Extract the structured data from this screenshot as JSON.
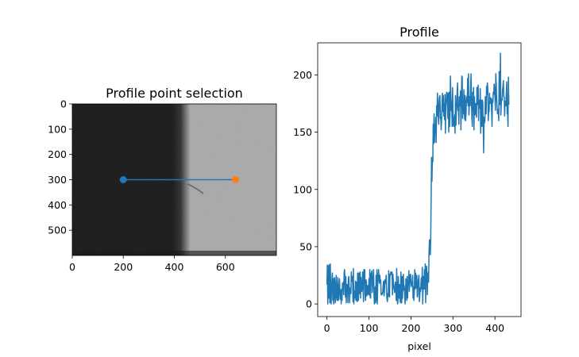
{
  "colors": {
    "line": "#1f77b4",
    "start_marker": "#1f77b4",
    "end_marker": "#ff7f0e",
    "image_dark": "#111111",
    "image_light": "#a8a8a8"
  },
  "chart_data": [
    {
      "type": "image",
      "title": "Profile point selection",
      "xlabel": "",
      "ylabel": "",
      "xlim": [
        0,
        800
      ],
      "ylim": [
        600,
        0
      ],
      "xticks": [
        "0",
        "200",
        "400",
        "600"
      ],
      "yticks": [
        "0",
        "100",
        "200",
        "300",
        "400",
        "500"
      ],
      "edge_x": 450,
      "selection_line": {
        "x": [
          200,
          640
        ],
        "y": [
          300,
          300
        ]
      },
      "markers": [
        {
          "name": "start",
          "x": 200,
          "y": 300
        },
        {
          "name": "end",
          "x": 640,
          "y": 300
        }
      ]
    },
    {
      "type": "line",
      "title": "Profile",
      "xlabel": "pixel",
      "ylabel": "",
      "xlim": [
        -22,
        462
      ],
      "ylim": [
        -11,
        228
      ],
      "xticks": [
        "0",
        "100",
        "200",
        "300",
        "400"
      ],
      "yticks": [
        "0",
        "50",
        "100",
        "150",
        "200"
      ],
      "series": [
        {
          "values": [
            17,
            34,
            0,
            33,
            5,
            34,
            22,
            1,
            35,
            13,
            0,
            13,
            22,
            27,
            3,
            22,
            0,
            6,
            23,
            16,
            1,
            12,
            25,
            7,
            3,
            15,
            23,
            3,
            4,
            15,
            22,
            10,
            4,
            12,
            0,
            13,
            3,
            18,
            16,
            19,
            8,
            28,
            30,
            20,
            6,
            24,
            1,
            17,
            17,
            15,
            1,
            22,
            24,
            14,
            1,
            13,
            14,
            9,
            28,
            20,
            22,
            24,
            2,
            31,
            0,
            11,
            5,
            10,
            20,
            3,
            19,
            4,
            2,
            27,
            8,
            3,
            27,
            21,
            9,
            28,
            5,
            23,
            11,
            11,
            18,
            28,
            13,
            2,
            30,
            22,
            30,
            6,
            3,
            21,
            19,
            7,
            10,
            16,
            9,
            8,
            22,
            8,
            30,
            6,
            5,
            27,
            25,
            29,
            10,
            20,
            23,
            30,
            8,
            0,
            12,
            15,
            1,
            25,
            3,
            30,
            0,
            19,
            25,
            30,
            21,
            18,
            25,
            19,
            21,
            8,
            9,
            8,
            9,
            11,
            17,
            20,
            7,
            12,
            21,
            18,
            20,
            25,
            11,
            4,
            2,
            9,
            7,
            29,
            7,
            6,
            26,
            25,
            28,
            27,
            26,
            28,
            8,
            26,
            20,
            14,
            13,
            10,
            16,
            19,
            12,
            3,
            31,
            16,
            0,
            2,
            24,
            6,
            5,
            17,
            5,
            1,
            28,
            14,
            1,
            24,
            5,
            19,
            26,
            12,
            16,
            10,
            0,
            9,
            22,
            12,
            3,
            24,
            5,
            20,
            19,
            29,
            11,
            17,
            25,
            26,
            19,
            15,
            19,
            19,
            25,
            5,
            15,
            3,
            11,
            30,
            13,
            27,
            14,
            22,
            25,
            6,
            7,
            20,
            22,
            25,
            2,
            7,
            14,
            11,
            19,
            23,
            13,
            32,
            0,
            16,
            24,
            13,
            30,
            13,
            35,
            1,
            29,
            33,
            28,
            8,
            27,
            22,
            19,
            45,
            56,
            55,
            43,
            56,
            90,
            128,
            107,
            128,
            124,
            157,
            140,
            166,
            141,
            154,
            152,
            163,
            141,
            173,
            164,
            184,
            174,
            163,
            157,
            177,
            181,
            182,
            162,
            163,
            152,
            162,
            175,
            184,
            168,
            182,
            164,
            175,
            161,
            183,
            149,
            173,
            179,
            185,
            184,
            170,
            162,
            184,
            150,
            185,
            155,
            165,
            199,
            182,
            169,
            177,
            155,
            189,
            170,
            156,
            155,
            161,
            165,
            149,
            182,
            156,
            167,
            173,
            186,
            193,
            169,
            171,
            157,
            181,
            173,
            176,
            186,
            152,
            178,
            199,
            198,
            162,
            178,
            166,
            187,
            168,
            161,
            182,
            160,
            165,
            177,
            181,
            176,
            197,
            173,
            201,
            165,
            175,
            181,
            173,
            189,
            201,
            177,
            163,
            155,
            185,
            168,
            189,
            152,
            181,
            165,
            166,
            175,
            172,
            163,
            189,
            174,
            181,
            191,
            160,
            178,
            173,
            171,
            188,
            149,
            178,
            166,
            155,
            178,
            176,
            156,
            132,
            163,
            158,
            160,
            181,
            167,
            166,
            190,
            183,
            193,
            187,
            160,
            169,
            168,
            184,
            175,
            175,
            180,
            178,
            169,
            155,
            179,
            176,
            185,
            183,
            192,
            187,
            181,
            169,
            201,
            192,
            180,
            172,
            166,
            170,
            168,
            160,
            203,
            174,
            177,
            219,
            165,
            175,
            179,
            178,
            187,
            190,
            195,
            181,
            181,
            164,
            177,
            173,
            173,
            185,
            194,
            166,
            167,
            155,
            198,
            174
          ]
        }
      ]
    }
  ]
}
